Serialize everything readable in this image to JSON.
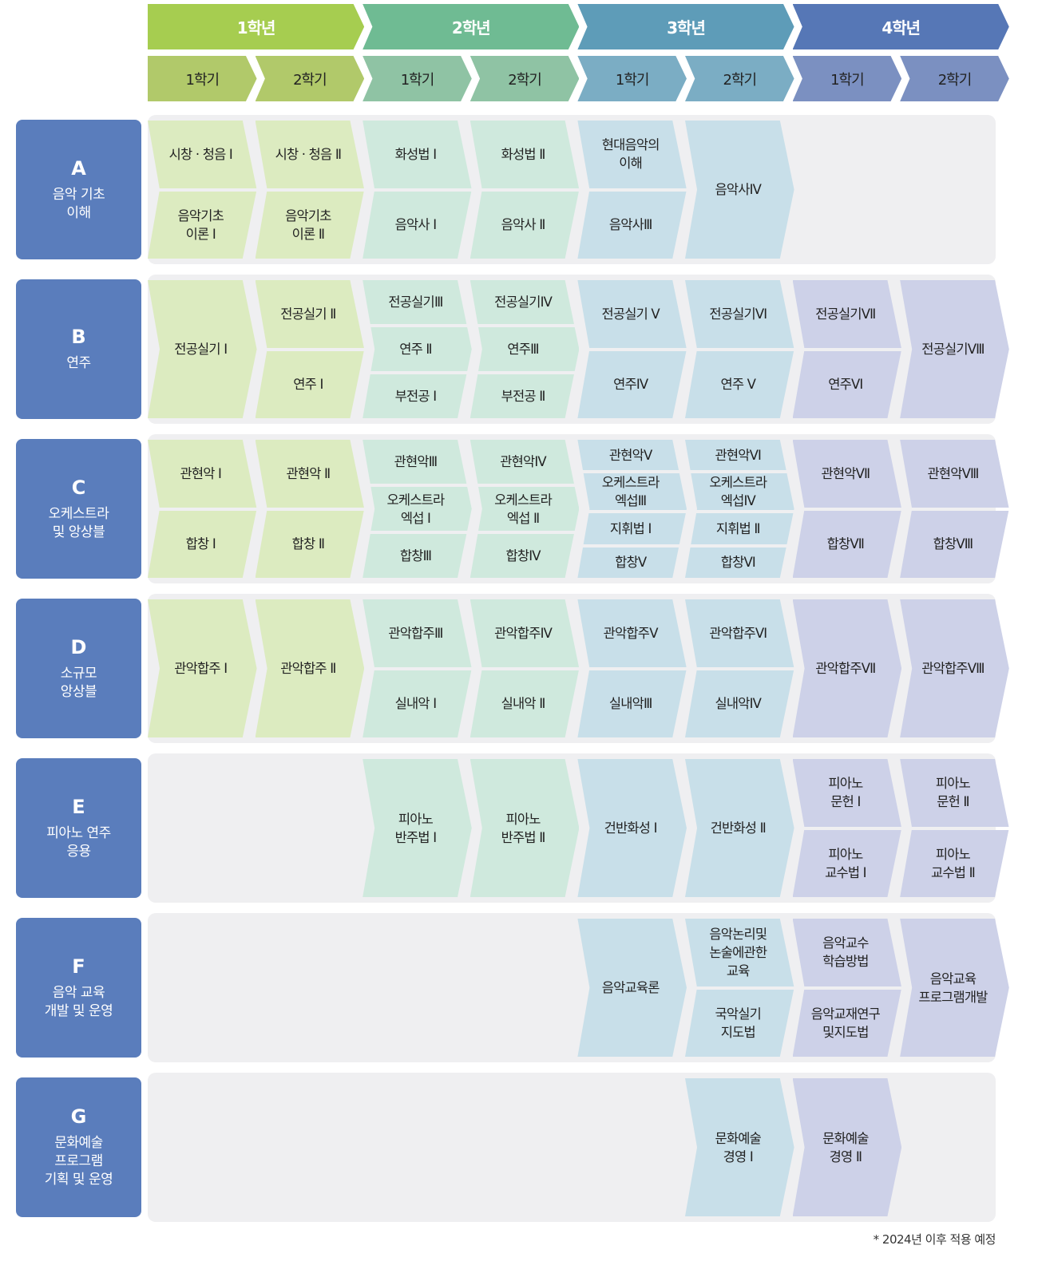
{
  "colors": {
    "years": [
      "#a6cd50",
      "#6fbb93",
      "#5e9cb8",
      "#5677b6"
    ],
    "semesters": [
      "#b1c96a",
      "#8fc3a4",
      "#7badc4",
      "#7b90c1"
    ],
    "cells": [
      "#dcebc0",
      "#cfe9dd",
      "#c8dfe9",
      "#cdd1e8"
    ],
    "category_box": "#5a7dbc",
    "panel": "#efeff1"
  },
  "years": [
    "1학년",
    "2학년",
    "3학년",
    "4학년"
  ],
  "semesters": [
    "1학기",
    "2학기",
    "1학기",
    "2학기",
    "1학기",
    "2학기",
    "1학기",
    "2학기"
  ],
  "rows": [
    {
      "letter": "A",
      "name": "음악 기초\n이해",
      "columns": [
        [
          "시창 · 청음 Ⅰ",
          "음악기초\n이론 Ⅰ"
        ],
        [
          "시창 · 청음 Ⅱ",
          "음악기초\n이론 Ⅱ"
        ],
        [
          "화성법 Ⅰ",
          "음악사 Ⅰ"
        ],
        [
          "화성법 Ⅱ",
          "음악사 Ⅱ"
        ],
        [
          "현대음악의\n이해",
          "음악사Ⅲ"
        ],
        [
          "음악사Ⅳ"
        ],
        [],
        []
      ]
    },
    {
      "letter": "B",
      "name": "연주",
      "columns": [
        [
          "전공실기 Ⅰ"
        ],
        [
          "전공실기 Ⅱ",
          "연주 Ⅰ"
        ],
        [
          "전공실기Ⅲ",
          "연주 Ⅱ",
          "부전공 Ⅰ"
        ],
        [
          "전공실기Ⅳ",
          "연주Ⅲ",
          "부전공 Ⅱ"
        ],
        [
          "전공실기 Ⅴ",
          "연주Ⅳ"
        ],
        [
          "전공실기Ⅵ",
          "연주 Ⅴ"
        ],
        [
          "전공실기Ⅶ",
          "연주Ⅵ"
        ],
        [
          "전공실기Ⅷ"
        ]
      ]
    },
    {
      "letter": "C",
      "name": "오케스트라\n및 앙상블",
      "columns": [
        [
          "관현악 Ⅰ",
          "합창 Ⅰ"
        ],
        [
          "관현악 Ⅱ",
          "합창 Ⅱ"
        ],
        [
          "관현악Ⅲ",
          "오케스트라\n엑섭 Ⅰ",
          "합창Ⅲ"
        ],
        [
          "관현악Ⅳ",
          "오케스트라\n엑섭 Ⅱ",
          "합창Ⅳ"
        ],
        [
          "관현악Ⅴ",
          "오케스트라\n엑섭Ⅲ",
          "지휘법 Ⅰ",
          "합창Ⅴ"
        ],
        [
          "관현악Ⅵ",
          "오케스트라\n엑섭Ⅳ",
          "지휘법 Ⅱ",
          "합창Ⅵ"
        ],
        [
          "관현악Ⅶ",
          "합창Ⅶ"
        ],
        [
          "관현악Ⅷ",
          "합창Ⅷ"
        ]
      ]
    },
    {
      "letter": "D",
      "name": "소규모\n앙상블",
      "columns": [
        [
          "관악합주 Ⅰ"
        ],
        [
          "관악합주 Ⅱ"
        ],
        [
          "관악합주Ⅲ",
          "실내악 Ⅰ"
        ],
        [
          "관악합주Ⅳ",
          "실내악 Ⅱ"
        ],
        [
          "관악합주Ⅴ",
          "실내악Ⅲ"
        ],
        [
          "관악합주Ⅵ",
          "실내악Ⅳ"
        ],
        [
          "관악합주Ⅶ"
        ],
        [
          "관악합주Ⅷ"
        ]
      ]
    },
    {
      "letter": "E",
      "name": "피아노 연주\n응용",
      "columns": [
        [],
        [],
        [
          "피아노\n반주법 Ⅰ"
        ],
        [
          "피아노\n반주법 Ⅱ"
        ],
        [
          "건반화성 Ⅰ"
        ],
        [
          "건반화성 Ⅱ"
        ],
        [
          "피아노\n문헌 Ⅰ",
          "피아노\n교수법 Ⅰ"
        ],
        [
          "피아노\n문헌 Ⅱ",
          "피아노\n교수법 Ⅱ"
        ]
      ]
    },
    {
      "letter": "F",
      "name": "음악 교육\n개발 및 운영",
      "columns": [
        [],
        [],
        [],
        [],
        [
          "음악교육론"
        ],
        [
          "음악논리및\n논술에관한\n교육",
          "국악실기\n지도법"
        ],
        [
          "음악교수\n학습방법",
          "음악교재연구\n및지도법"
        ],
        [
          "음악교육\n프로그램개발"
        ]
      ]
    },
    {
      "letter": "G",
      "name": "문화예술\n프로그램\n기획 및 운영",
      "columns": [
        [],
        [],
        [],
        [],
        [],
        [
          "문화예술\n경영 Ⅰ"
        ],
        [
          "문화예술\n경영 Ⅱ"
        ],
        []
      ]
    }
  ],
  "footnote": "* 2024년 이후 적용 예정"
}
